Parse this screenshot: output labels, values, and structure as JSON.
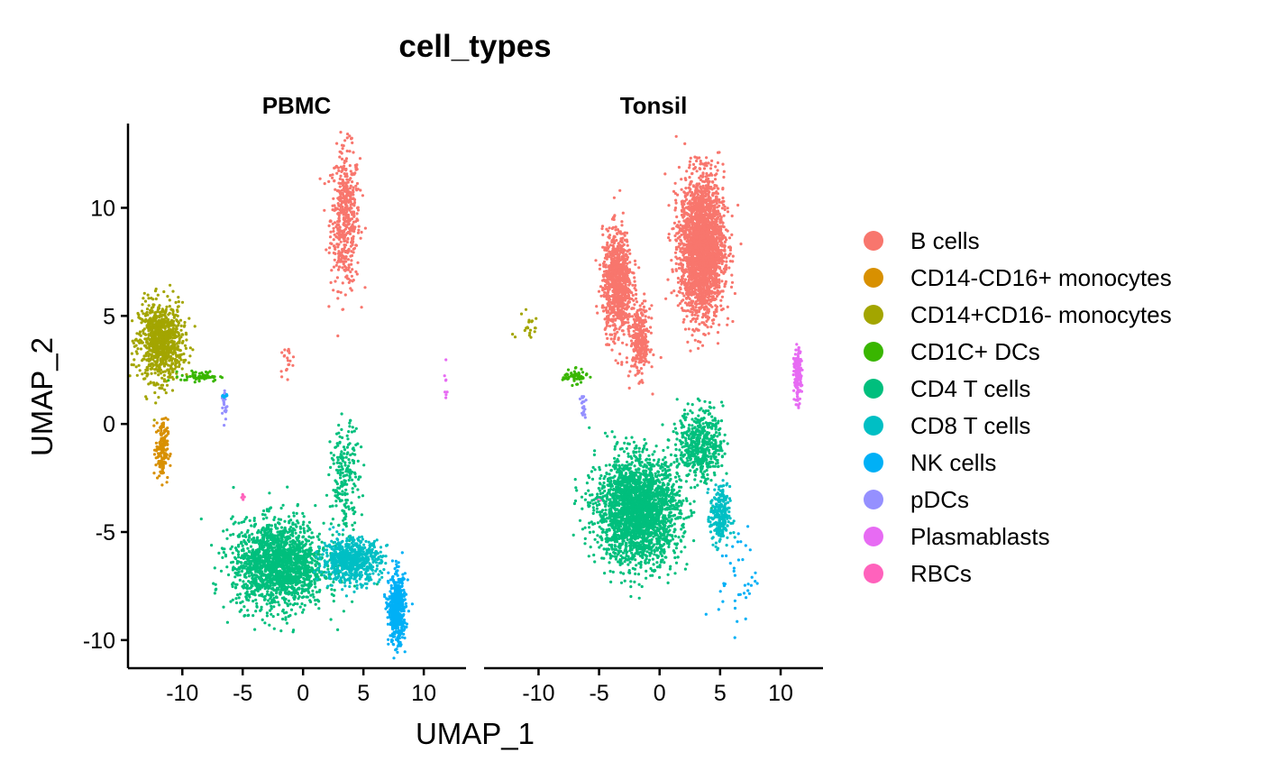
{
  "chart_data": {
    "type": "scatter",
    "title": "cell_types",
    "xlabel": "UMAP_1",
    "ylabel": "UMAP_2",
    "xlim": [
      -14.5,
      13.5
    ],
    "ylim": [
      -11.3,
      13.9
    ],
    "x_ticks": [
      -10,
      -5,
      0,
      5,
      10
    ],
    "y_ticks": [
      -10,
      -5,
      0,
      5,
      10
    ],
    "facets": [
      "PBMC",
      "Tonsil"
    ],
    "legend_position": "right",
    "series": [
      {
        "name": "B cells",
        "color": "#F8766D"
      },
      {
        "name": "CD14-CD16+ monocytes",
        "color": "#D89000"
      },
      {
        "name": "CD14+CD16- monocytes",
        "color": "#A3A500"
      },
      {
        "name": "CD1C+ DCs",
        "color": "#39B600"
      },
      {
        "name": "CD4 T cells",
        "color": "#00BF7D"
      },
      {
        "name": "CD8 T cells",
        "color": "#00BFC4"
      },
      {
        "name": "NK cells",
        "color": "#00B0F6"
      },
      {
        "name": "pDCs",
        "color": "#9590FF"
      },
      {
        "name": "Plasmablasts",
        "color": "#E76BF3"
      },
      {
        "name": "RBCs",
        "color": "#FF62BC"
      }
    ],
    "clusters": {
      "PBMC": [
        {
          "series": 0,
          "cx": 3.5,
          "cy": 9.5,
          "sx": 0.6,
          "sy": 1.6,
          "n": 500
        },
        {
          "series": 0,
          "cx": -1.3,
          "cy": 2.9,
          "sx": 0.35,
          "sy": 0.35,
          "n": 20
        },
        {
          "series": 2,
          "cx": -11.8,
          "cy": 3.8,
          "sx": 0.9,
          "sy": 0.9,
          "n": 900
        },
        {
          "series": 1,
          "cx": -11.7,
          "cy": -1.2,
          "sx": 0.25,
          "sy": 0.7,
          "n": 160
        },
        {
          "series": 3,
          "cx": -8.5,
          "cy": 2.2,
          "sx": 0.8,
          "sy": 0.12,
          "n": 60
        },
        {
          "series": 7,
          "cx": -6.5,
          "cy": 0.9,
          "sx": 0.12,
          "sy": 0.4,
          "n": 25
        },
        {
          "series": 6,
          "cx": -6.5,
          "cy": 1.35,
          "sx": 0.1,
          "sy": 0.1,
          "n": 8
        },
        {
          "series": 8,
          "cx": 11.8,
          "cy": 1.7,
          "sx": 0.08,
          "sy": 0.6,
          "n": 8
        },
        {
          "series": 9,
          "cx": -5.0,
          "cy": -3.4,
          "sx": 0.1,
          "sy": 0.1,
          "n": 5
        },
        {
          "series": 4,
          "cx": -2.0,
          "cy": -6.5,
          "sx": 1.9,
          "sy": 1.0,
          "n": 1800
        },
        {
          "series": 4,
          "cx": 3.5,
          "cy": -2.5,
          "sx": 0.6,
          "sy": 1.2,
          "n": 200
        },
        {
          "series": 5,
          "cx": 4.0,
          "cy": -6.3,
          "sx": 1.2,
          "sy": 0.5,
          "n": 700
        },
        {
          "series": 6,
          "cx": 7.8,
          "cy": -8.6,
          "sx": 0.35,
          "sy": 0.8,
          "n": 500
        }
      ],
      "Tonsil": [
        {
          "series": 0,
          "cx": 3.5,
          "cy": 8.2,
          "sx": 0.9,
          "sy": 1.6,
          "n": 2500
        },
        {
          "series": 0,
          "cx": -3.5,
          "cy": 6.5,
          "sx": 0.6,
          "sy": 1.2,
          "n": 900
        },
        {
          "series": 0,
          "cx": -1.6,
          "cy": 3.8,
          "sx": 0.4,
          "sy": 0.8,
          "n": 300
        },
        {
          "series": 2,
          "cx": -11.0,
          "cy": 4.5,
          "sx": 0.6,
          "sy": 0.6,
          "n": 20
        },
        {
          "series": 3,
          "cx": -7.0,
          "cy": 2.2,
          "sx": 0.5,
          "sy": 0.15,
          "n": 60
        },
        {
          "series": 7,
          "cx": -6.3,
          "cy": 0.8,
          "sx": 0.12,
          "sy": 0.3,
          "n": 20
        },
        {
          "series": 8,
          "cx": 11.4,
          "cy": 2.2,
          "sx": 0.15,
          "sy": 0.6,
          "n": 160
        },
        {
          "series": 9,
          "cx": -5.0,
          "cy": -3.4,
          "sx": 0.1,
          "sy": 0.1,
          "n": 3
        },
        {
          "series": 4,
          "cx": -1.8,
          "cy": -4.0,
          "sx": 1.7,
          "sy": 1.2,
          "n": 2500
        },
        {
          "series": 4,
          "cx": 3.4,
          "cy": -0.9,
          "sx": 0.9,
          "sy": 0.8,
          "n": 500
        },
        {
          "series": 5,
          "cx": 5.0,
          "cy": -4.3,
          "sx": 0.4,
          "sy": 0.7,
          "n": 250
        },
        {
          "series": 6,
          "cx": 6.5,
          "cy": -7.0,
          "sx": 0.8,
          "sy": 1.2,
          "n": 40
        }
      ]
    }
  }
}
